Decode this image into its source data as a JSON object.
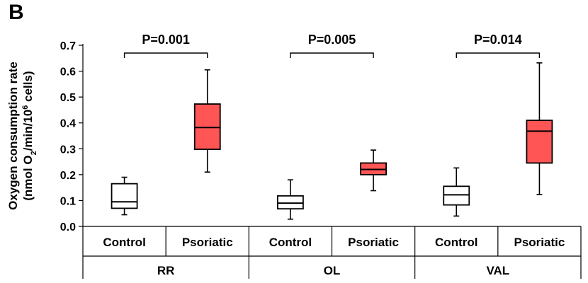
{
  "panel_label": "B",
  "chart_data": {
    "type": "box",
    "ylabel_line1": "Oxygen consumption rate",
    "ylabel_line2_parts": [
      "(nmol O",
      "2",
      "/min/10",
      "6",
      " cells)"
    ],
    "ylim": [
      0,
      0.7
    ],
    "yticks": [
      "0.0",
      "0.1",
      "0.2",
      "0.3",
      "0.4",
      "0.5",
      "0.6",
      "0.7"
    ],
    "groups": [
      {
        "name": "RR",
        "p_value": "P=0.001",
        "boxes": [
          {
            "category": "Control",
            "min": 0.045,
            "q1": 0.07,
            "median": 0.095,
            "q3": 0.165,
            "max": 0.19,
            "fill": "#ffffff"
          },
          {
            "category": "Psoriatic",
            "min": 0.21,
            "q1": 0.298,
            "median": 0.382,
            "q3": 0.473,
            "max": 0.605,
            "fill": "#ff5555"
          }
        ]
      },
      {
        "name": "OL",
        "p_value": "P=0.005",
        "boxes": [
          {
            "category": "Control",
            "min": 0.028,
            "q1": 0.068,
            "median": 0.09,
            "q3": 0.118,
            "max": 0.18,
            "fill": "#ffffff"
          },
          {
            "category": "Psoriatic",
            "min": 0.138,
            "q1": 0.2,
            "median": 0.22,
            "q3": 0.245,
            "max": 0.295,
            "fill": "#ff5555"
          }
        ]
      },
      {
        "name": "VAL",
        "p_value": "P=0.014",
        "boxes": [
          {
            "category": "Control",
            "min": 0.04,
            "q1": 0.083,
            "median": 0.122,
            "q3": 0.155,
            "max": 0.226,
            "fill": "#ffffff"
          },
          {
            "category": "Psoriatic",
            "min": 0.123,
            "q1": 0.245,
            "median": 0.368,
            "q3": 0.41,
            "max": 0.632,
            "fill": "#ff5555"
          }
        ]
      }
    ]
  }
}
